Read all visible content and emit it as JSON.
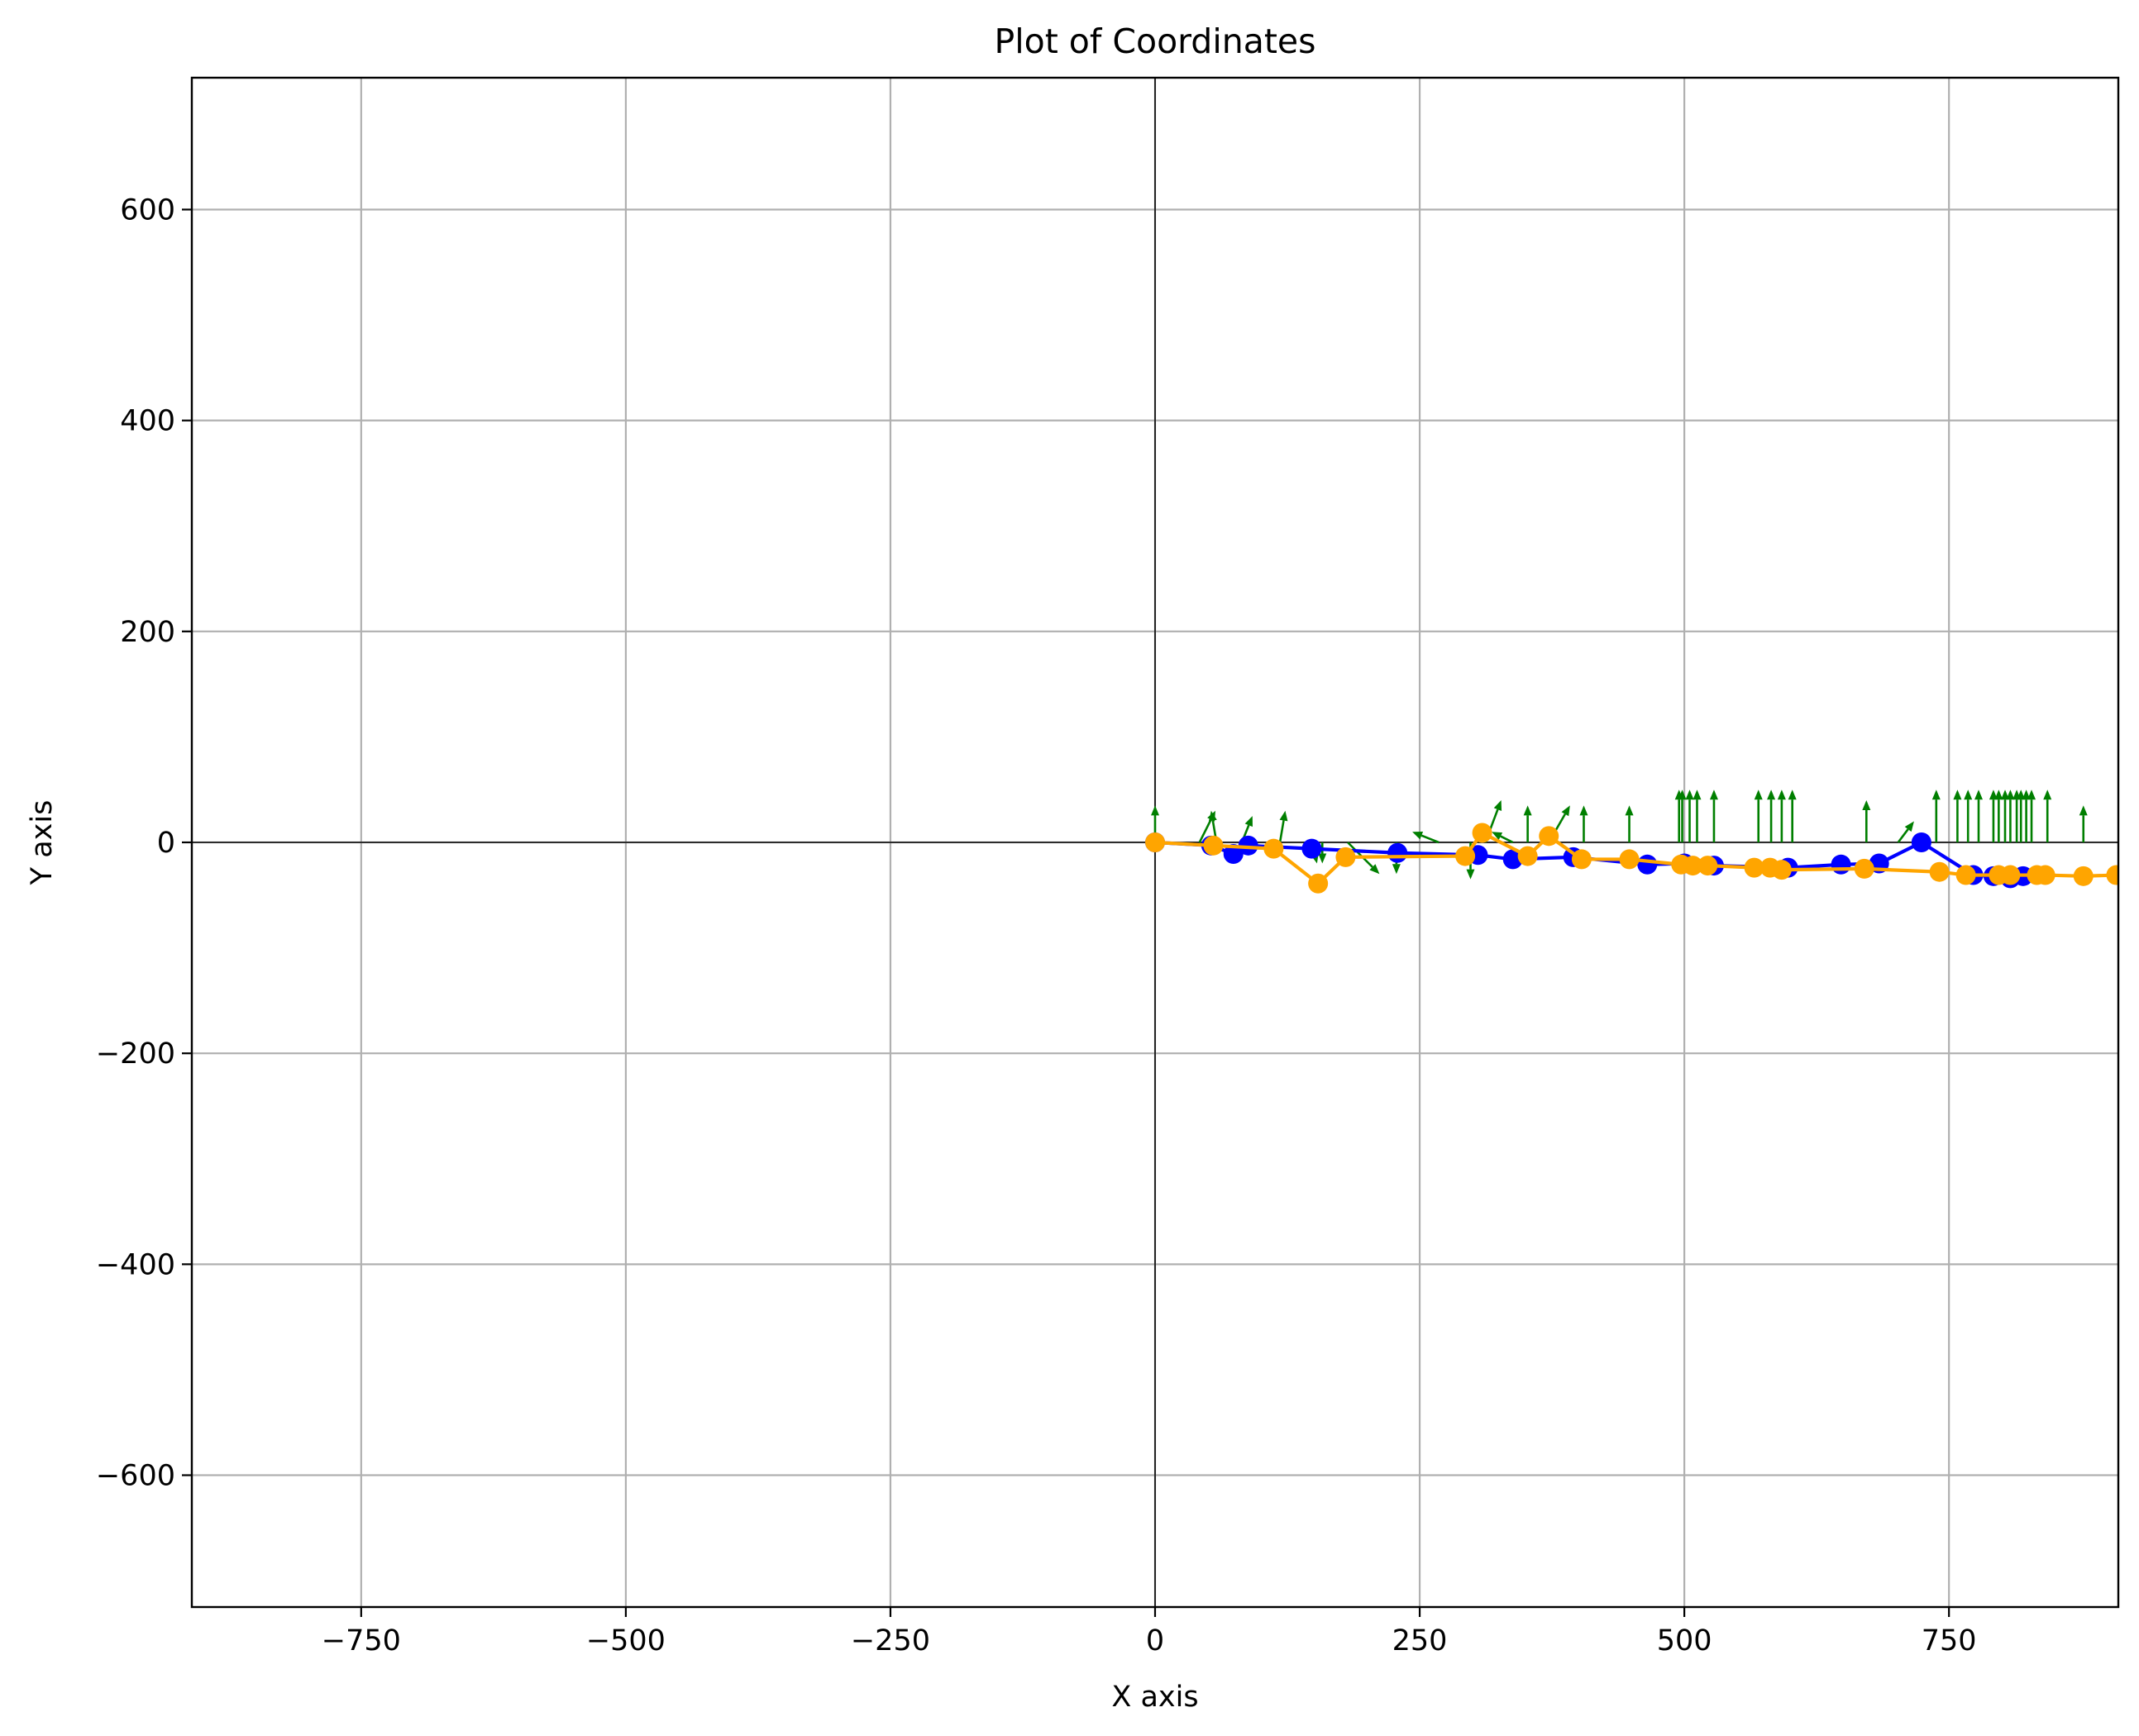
{
  "chart_data": {
    "type": "line",
    "title": "Plot of Coordinates",
    "xlabel": "X axis",
    "ylabel": "Y axis",
    "xlim": [
      -910,
      910
    ],
    "ylim": [
      -725,
      725
    ],
    "xticks": [
      -750,
      -500,
      -250,
      0,
      250,
      500,
      750
    ],
    "yticks": [
      -600,
      -400,
      -200,
      0,
      200,
      400,
      600
    ],
    "xtick_labels": [
      "−750",
      "−500",
      "−250",
      "0",
      "250",
      "500",
      "750"
    ],
    "ytick_labels": [
      "−600",
      "−400",
      "−200",
      "0",
      "200",
      "400",
      "600"
    ],
    "grid": true,
    "reference_lines": {
      "x": 0,
      "y": 0,
      "color": "#000000"
    },
    "series": [
      {
        "color": "#0000ff",
        "marker": "circle",
        "x": [
          0,
          53,
          74,
          88,
          148,
          229,
          305,
          338,
          395,
          465,
          500,
          528,
          598,
          648,
          684,
          724,
          773,
          792,
          808,
          820
        ],
        "y": [
          0,
          -3,
          -11,
          -3,
          -6,
          -10,
          -12,
          -16,
          -14,
          -21,
          -20,
          -22,
          -24,
          -21,
          -20,
          0,
          -31,
          -32,
          -34,
          -32
        ]
      },
      {
        "color": "#ffa500",
        "marker": "circle",
        "x": [
          0,
          55,
          112,
          154,
          180,
          293,
          309,
          352,
          372,
          403,
          448,
          497,
          508,
          522,
          566,
          581,
          592,
          670,
          741,
          766,
          797,
          808,
          833,
          841,
          877,
          908
        ],
        "y": [
          0,
          -3,
          -6,
          -39,
          -14,
          -13,
          9,
          -13,
          6,
          -16,
          -16,
          -21,
          -22,
          -22,
          -24,
          -24,
          -26,
          -25,
          -28,
          -31,
          -31,
          -31,
          -31,
          -31,
          -32,
          -31
        ]
      }
    ],
    "arrows": {
      "color": "#007f00",
      "x": [
        0,
        42,
        58,
        82,
        118,
        148,
        158,
        182,
        228,
        268,
        298,
        312,
        338,
        352,
        372,
        405,
        448,
        495,
        498,
        505,
        512,
        528,
        570,
        582,
        592,
        602,
        672,
        702,
        738,
        758,
        768,
        778,
        792,
        797,
        803,
        808,
        814,
        818,
        823,
        828,
        843,
        877
      ],
      "y": [
        0,
        0,
        0,
        0,
        0,
        0,
        0,
        0,
        0,
        0,
        0,
        0,
        0,
        0,
        0,
        0,
        0,
        0,
        0,
        0,
        0,
        0,
        0,
        0,
        0,
        0,
        0,
        0,
        0,
        0,
        0,
        0,
        0,
        0,
        0,
        0,
        0,
        0,
        0,
        0,
        0,
        0
      ],
      "u": [
        0,
        15,
        -5,
        10,
        5,
        5,
        0,
        30,
        0,
        -25,
        0,
        15,
        -20,
        0,
        20,
        0,
        0,
        0,
        0,
        0,
        0,
        0,
        0,
        0,
        0,
        0,
        0,
        15,
        0,
        0,
        0,
        0,
        0,
        0,
        0,
        0,
        0,
        0,
        0,
        0,
        0,
        0
      ],
      "v": [
        35,
        30,
        30,
        25,
        30,
        -20,
        -20,
        -30,
        -30,
        10,
        -35,
        40,
        10,
        35,
        35,
        35,
        35,
        50,
        50,
        50,
        50,
        50,
        50,
        50,
        50,
        50,
        40,
        20,
        50,
        50,
        50,
        50,
        50,
        50,
        50,
        50,
        50,
        50,
        50,
        50,
        50,
        35
      ]
    }
  }
}
